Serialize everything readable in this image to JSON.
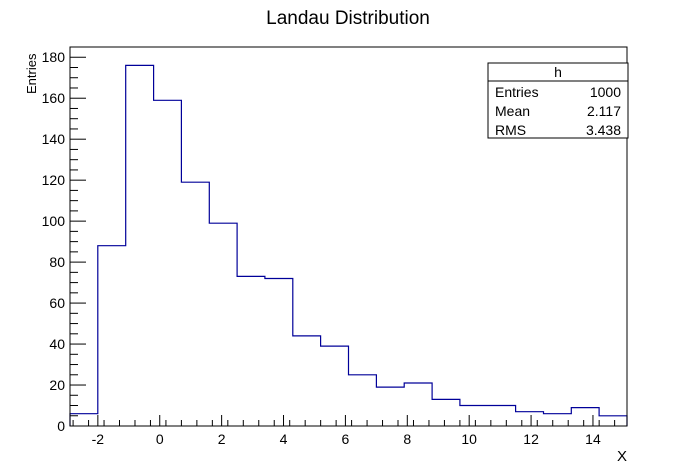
{
  "chart_data": {
    "type": "histogram",
    "title": "Landau Distribution",
    "xlabel": "X",
    "ylabel": "Entries",
    "xlim": [
      -2.9,
      15.1
    ],
    "ylim": [
      0,
      185
    ],
    "bin_edges": [
      -2.9,
      -2.0,
      -1.1,
      -0.2,
      0.7,
      1.6,
      2.5,
      3.4,
      4.3,
      5.2,
      6.1,
      7.0,
      7.9,
      8.8,
      9.7,
      10.6,
      11.5,
      12.4,
      13.3,
      14.2,
      15.1
    ],
    "counts": [
      6,
      88,
      176,
      159,
      119,
      99,
      73,
      72,
      44,
      39,
      25,
      19,
      21,
      13,
      10,
      10,
      7,
      6,
      9,
      5
    ],
    "x_ticks": [
      -2,
      0,
      2,
      4,
      6,
      8,
      10,
      12,
      14
    ],
    "x_tick_labels": [
      "-2",
      "0",
      "2",
      "4",
      "6",
      "8",
      "10",
      "12",
      "14"
    ],
    "y_ticks": [
      0,
      20,
      40,
      60,
      80,
      100,
      120,
      140,
      160,
      180
    ],
    "y_tick_labels": [
      "0",
      "20",
      "40",
      "60",
      "80",
      "100",
      "120",
      "140",
      "160",
      "180"
    ],
    "line_color": "#000099",
    "frame_color": "#000000",
    "stats_box": {
      "title": "h",
      "rows": [
        {
          "label": "Entries",
          "value": "1000"
        },
        {
          "label": "Mean",
          "value": "2.117"
        },
        {
          "label": "RMS",
          "value": "3.438"
        }
      ]
    }
  }
}
